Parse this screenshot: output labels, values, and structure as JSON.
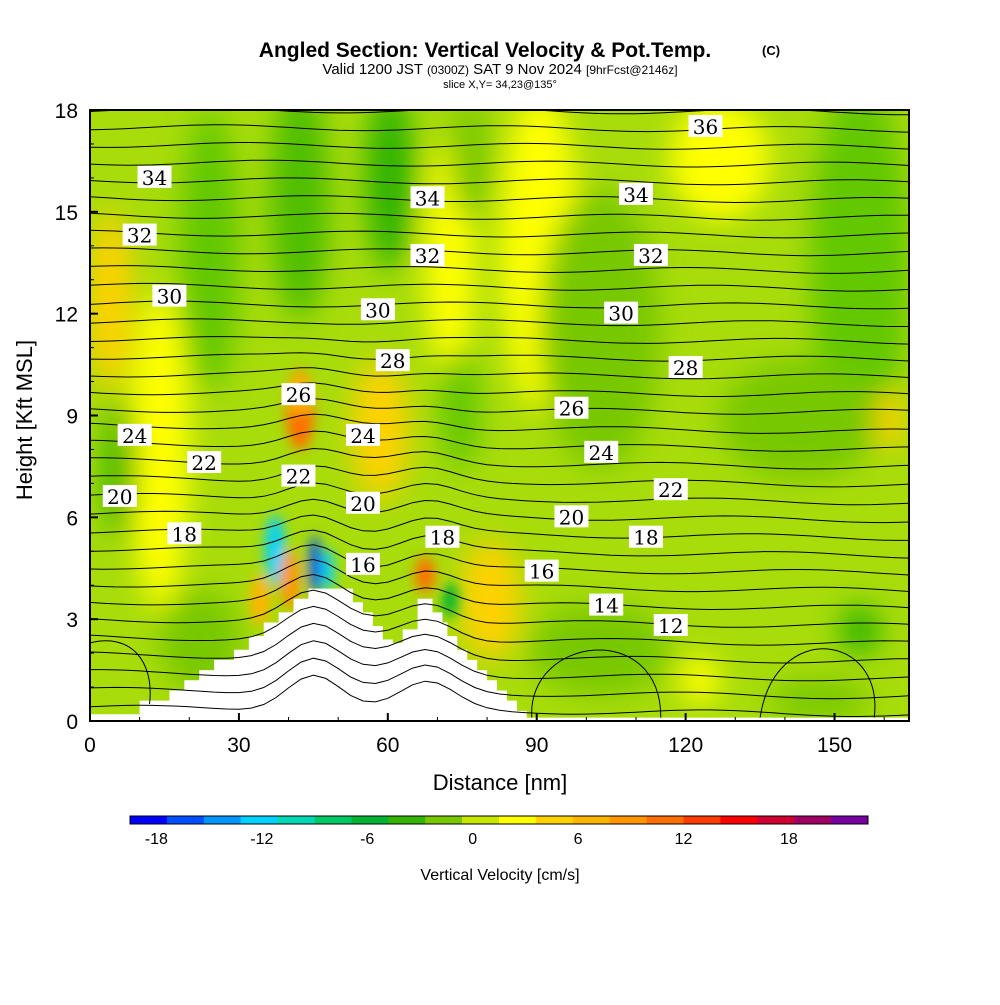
{
  "chart_data": {
    "type": "heatmap",
    "title": "Angled Section: Vertical Velocity & Pot.Temp.",
    "title_units": "(C)",
    "subtitle": {
      "prefix": "Valid 1200 JST",
      "zulu": "(0300Z)",
      "date": "SAT 9 Nov 2024",
      "forecast": "[9hrFcst@2146z]"
    },
    "slice_label": "slice X,Y= 34,23@135°",
    "xlabel": "Distance [nm]",
    "ylabel": "Height [Kft MSL]",
    "xlim": [
      0,
      165
    ],
    "ylim": [
      0,
      18
    ],
    "x_ticks": [
      0,
      30,
      60,
      90,
      120,
      150
    ],
    "y_ticks": [
      0,
      3,
      6,
      9,
      12,
      15,
      18
    ],
    "colorbar": {
      "label": "Vertical Velocity [cm/s]",
      "ticks": [
        -18,
        -12,
        -6,
        0,
        6,
        12,
        18
      ],
      "colors": [
        "#0000ff",
        "#0050ff",
        "#0096ff",
        "#00d2ff",
        "#00d8b4",
        "#00c864",
        "#00b432",
        "#32b400",
        "#78c800",
        "#c8e600",
        "#ffff00",
        "#ffd200",
        "#ffb400",
        "#ff9600",
        "#ff6e00",
        "#ff3c00",
        "#ff0000",
        "#d20032",
        "#a00064",
        "#7800a0"
      ]
    },
    "terrain": {
      "x_nm": [
        0,
        10,
        10,
        16,
        16,
        19,
        19,
        22,
        22,
        25,
        25,
        29,
        29,
        32,
        32,
        35,
        35,
        38,
        38,
        41,
        41,
        44,
        44,
        47,
        47,
        53,
        53,
        55,
        55,
        57,
        57,
        59,
        59,
        61,
        61,
        63,
        63,
        66,
        66,
        69,
        69,
        71,
        71,
        72,
        72,
        74,
        74,
        76,
        76,
        78,
        78,
        80,
        80,
        82,
        82,
        84,
        84,
        86,
        86,
        88,
        88,
        90,
        90,
        165
      ],
      "height_kft": [
        0.2,
        0.2,
        0.6,
        0.6,
        0.9,
        0.9,
        1.2,
        1.2,
        1.5,
        1.5,
        1.8,
        1.8,
        2.1,
        2.1,
        2.5,
        2.5,
        2.9,
        2.9,
        3.2,
        3.2,
        3.6,
        3.6,
        3.9,
        3.9,
        3.9,
        3.9,
        3.5,
        3.5,
        3.2,
        3.2,
        2.8,
        2.8,
        2.4,
        2.4,
        2.3,
        2.3,
        2.7,
        2.7,
        3.6,
        3.6,
        3.2,
        3.2,
        2.9,
        2.9,
        2.5,
        2.5,
        2.1,
        2.1,
        1.8,
        1.8,
        1.5,
        1.5,
        1.2,
        1.2,
        0.9,
        0.9,
        0.6,
        0.6,
        0.3,
        0.3,
        0.1,
        0.1,
        0.1,
        0.1
      ]
    },
    "contour_labels": [
      {
        "text": "36",
        "x": 124,
        "y": 17.5
      },
      {
        "text": "34",
        "x": 13,
        "y": 16.0
      },
      {
        "text": "34",
        "x": 68,
        "y": 15.4
      },
      {
        "text": "34",
        "x": 110,
        "y": 15.5
      },
      {
        "text": "32",
        "x": 10,
        "y": 14.3
      },
      {
        "text": "32",
        "x": 68,
        "y": 13.7
      },
      {
        "text": "32",
        "x": 113,
        "y": 13.7
      },
      {
        "text": "30",
        "x": 16,
        "y": 12.5
      },
      {
        "text": "30",
        "x": 58,
        "y": 12.1
      },
      {
        "text": "30",
        "x": 107,
        "y": 12.0
      },
      {
        "text": "28",
        "x": 61,
        "y": 10.6
      },
      {
        "text": "28",
        "x": 120,
        "y": 10.4
      },
      {
        "text": "26",
        "x": 42,
        "y": 9.6
      },
      {
        "text": "26",
        "x": 97,
        "y": 9.2
      },
      {
        "text": "24",
        "x": 9,
        "y": 8.4
      },
      {
        "text": "24",
        "x": 55,
        "y": 8.4
      },
      {
        "text": "24",
        "x": 103,
        "y": 7.9
      },
      {
        "text": "22",
        "x": 23,
        "y": 7.6
      },
      {
        "text": "22",
        "x": 42,
        "y": 7.2
      },
      {
        "text": "22",
        "x": 117,
        "y": 6.8
      },
      {
        "text": "20",
        "x": 6,
        "y": 6.6
      },
      {
        "text": "20",
        "x": 55,
        "y": 6.4
      },
      {
        "text": "20",
        "x": 97,
        "y": 6.0
      },
      {
        "text": "18",
        "x": 19,
        "y": 5.5
      },
      {
        "text": "18",
        "x": 71,
        "y": 5.4
      },
      {
        "text": "18",
        "x": 112,
        "y": 5.4
      },
      {
        "text": "16",
        "x": 55,
        "y": 4.6
      },
      {
        "text": "16",
        "x": 91,
        "y": 4.4
      },
      {
        "text": "14",
        "x": 104,
        "y": 3.4
      },
      {
        "text": "12",
        "x": 117,
        "y": 2.8
      }
    ]
  }
}
